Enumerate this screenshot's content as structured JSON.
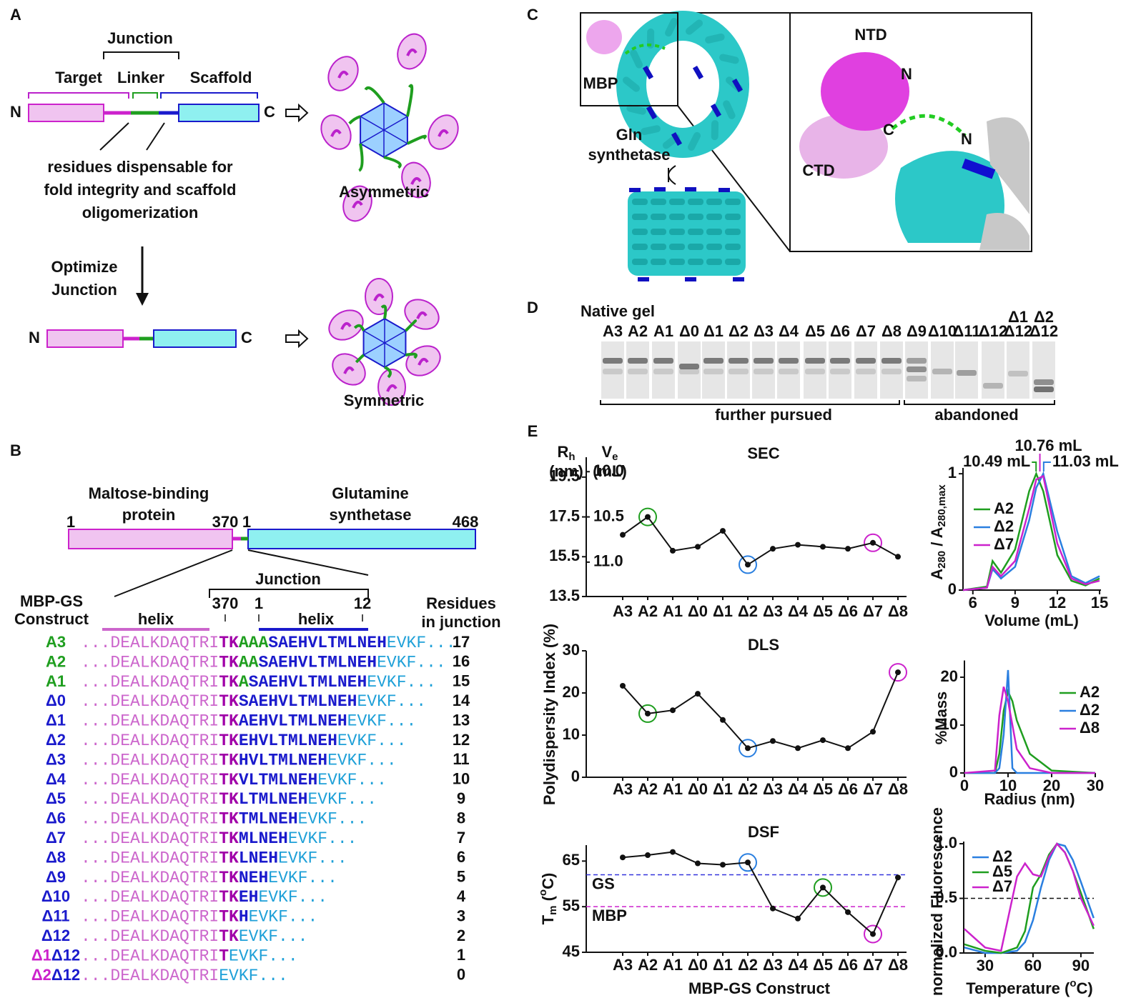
{
  "panel_labels": [
    "A",
    "B",
    "C",
    "D",
    "E"
  ],
  "panel_a": {
    "junction": "Junction",
    "target": "Target",
    "linker": "Linker",
    "scaffold": "Scaffold",
    "termini": [
      "N",
      "C",
      "N",
      "C"
    ],
    "note": [
      "residues dispensable for",
      "fold integrity and scaffold",
      "oligomerization"
    ],
    "step": [
      "Optimize",
      "Junction"
    ],
    "assemblies": [
      "Asymmetric",
      "Symmetric"
    ]
  },
  "panel_b": {
    "mbp": [
      "Maltose-binding",
      "protein"
    ],
    "gs": [
      "Glutamine",
      "synthetase"
    ],
    "positions": [
      "1",
      "370",
      "1",
      "468"
    ],
    "junction": "Junction",
    "construct_header": [
      "MBP-GS",
      "Construct"
    ],
    "helix": [
      "helix",
      "helix"
    ],
    "junction_positions": [
      "370",
      "1",
      "12"
    ],
    "residues_header": [
      "Residues",
      "in junction"
    ],
    "segment_colors": {
      "target": "#cc66cc",
      "tk": "#a000a8",
      "linker": "#1f9e1f",
      "helix": "#1a1acc",
      "tail": "#1ea0d8"
    },
    "rows": [
      {
        "name": [
          {
            "text": "A3",
            "color": "#1f9e1f"
          }
        ],
        "sequence": {
          "target": "...DEALKDAQTRI",
          "tk": "TK",
          "linker": "AAA",
          "helix": "SAEHVLTMLNEH",
          "tail": "EVKF..."
        },
        "residues": 17
      },
      {
        "name": [
          {
            "text": "A2",
            "color": "#1f9e1f"
          }
        ],
        "sequence": {
          "target": "...DEALKDAQTRI",
          "tk": "TK",
          "linker": "AA",
          "helix": "SAEHVLTMLNEH",
          "tail": "EVKF..."
        },
        "residues": 16
      },
      {
        "name": [
          {
            "text": "A1",
            "color": "#1f9e1f"
          }
        ],
        "sequence": {
          "target": "...DEALKDAQTRI",
          "tk": "TK",
          "linker": "A",
          "helix": "SAEHVLTMLNEH",
          "tail": "EVKF..."
        },
        "residues": 15
      },
      {
        "name": [
          {
            "text": "Δ0",
            "color": "#1a1acc"
          }
        ],
        "sequence": {
          "target": "...DEALKDAQTRI",
          "tk": "TK",
          "helix": "SAEHVLTMLNEH",
          "tail": "EVKF..."
        },
        "residues": 14
      },
      {
        "name": [
          {
            "text": "Δ1",
            "color": "#1a1acc"
          }
        ],
        "sequence": {
          "target": "...DEALKDAQTRI",
          "tk": "TK",
          "helix": "AEHVLTMLNEH",
          "tail": "EVKF..."
        },
        "residues": 13
      },
      {
        "name": [
          {
            "text": "Δ2",
            "color": "#1a1acc"
          }
        ],
        "sequence": {
          "target": "...DEALKDAQTRI",
          "tk": "TK",
          "helix": "EHVLTMLNEH",
          "tail": "EVKF..."
        },
        "residues": 12
      },
      {
        "name": [
          {
            "text": "Δ3",
            "color": "#1a1acc"
          }
        ],
        "sequence": {
          "target": "...DEALKDAQTRI",
          "tk": "TK",
          "helix": "HVLTMLNEH",
          "tail": "EVKF..."
        },
        "residues": 11
      },
      {
        "name": [
          {
            "text": "Δ4",
            "color": "#1a1acc"
          }
        ],
        "sequence": {
          "target": "...DEALKDAQTRI",
          "tk": "TK",
          "helix": "VLTMLNEH",
          "tail": "EVKF..."
        },
        "residues": 10
      },
      {
        "name": [
          {
            "text": "Δ5",
            "color": "#1a1acc"
          }
        ],
        "sequence": {
          "target": "...DEALKDAQTRI",
          "tk": "TK",
          "helix": "LTMLNEH",
          "tail": "EVKF..."
        },
        "residues": 9
      },
      {
        "name": [
          {
            "text": "Δ6",
            "color": "#1a1acc"
          }
        ],
        "sequence": {
          "target": "...DEALKDAQTRI",
          "tk": "TK",
          "helix": "TMLNEH",
          "tail": "EVKF..."
        },
        "residues": 8
      },
      {
        "name": [
          {
            "text": "Δ7",
            "color": "#1a1acc"
          }
        ],
        "sequence": {
          "target": "...DEALKDAQTRI",
          "tk": "TK",
          "helix": "MLNEH",
          "tail": "EVKF..."
        },
        "residues": 7
      },
      {
        "name": [
          {
            "text": "Δ8",
            "color": "#1a1acc"
          }
        ],
        "sequence": {
          "target": "...DEALKDAQTRI",
          "tk": "TK",
          "helix": "LNEH",
          "tail": "EVKF..."
        },
        "residues": 6
      },
      {
        "name": [
          {
            "text": "Δ9",
            "color": "#1a1acc"
          }
        ],
        "sequence": {
          "target": "...DEALKDAQTRI",
          "tk": "TK",
          "helix": "NEH",
          "tail": "EVKF..."
        },
        "residues": 5
      },
      {
        "name": [
          {
            "text": "Δ10",
            "color": "#1a1acc"
          }
        ],
        "sequence": {
          "target": "...DEALKDAQTRI",
          "tk": "TK",
          "helix": "EH",
          "tail": "EVKF..."
        },
        "residues": 4
      },
      {
        "name": [
          {
            "text": "Δ11",
            "color": "#1a1acc"
          }
        ],
        "sequence": {
          "target": "...DEALKDAQTRI",
          "tk": "TK",
          "helix": "H",
          "tail": "EVKF..."
        },
        "residues": 3
      },
      {
        "name": [
          {
            "text": "Δ12",
            "color": "#1a1acc"
          }
        ],
        "sequence": {
          "target": "...DEALKDAQTRI",
          "tk": "TK",
          "tail": "EVKF..."
        },
        "residues": 2
      },
      {
        "name": [
          {
            "text": "Δ1",
            "color": "#cc22cc"
          },
          {
            "text": "Δ12",
            "color": "#1a1acc"
          }
        ],
        "sequence": {
          "target": "...DEALKDAQTRI",
          "tk": "T",
          "tail": "EVKF..."
        },
        "residues": 1
      },
      {
        "name": [
          {
            "text": "Δ2",
            "color": "#cc22cc"
          },
          {
            "text": "Δ12",
            "color": "#1a1acc"
          }
        ],
        "sequence": {
          "target": "...DEALKDAQTRI",
          "tail": "EVKF..."
        },
        "residues": 0
      }
    ]
  },
  "panel_c": {
    "labels": [
      "MBP",
      "Gln",
      "synthetase",
      "NTD",
      "N",
      "C",
      "CTD",
      "N"
    ]
  },
  "panel_d": {
    "title": "Native gel",
    "lane_labels": [
      [
        "A3"
      ],
      [
        "A2"
      ],
      [
        "A1"
      ],
      [
        "Δ0"
      ],
      [
        "Δ1"
      ],
      [
        "Δ2"
      ],
      [
        "Δ3"
      ],
      [
        "Δ4"
      ],
      [
        "Δ5"
      ],
      [
        "Δ6"
      ],
      [
        "Δ7"
      ],
      [
        "Δ8"
      ],
      [
        "Δ9"
      ],
      [
        "Δ10"
      ],
      [
        "Δ11"
      ],
      [
        "Δ12"
      ],
      [
        "Δ1",
        "Δ12"
      ],
      [
        "Δ2",
        "Δ12"
      ]
    ],
    "lane_label_colors": [
      [
        "#1f9e1f"
      ],
      [
        "#1f9e1f"
      ],
      [
        "#1f9e1f"
      ],
      [
        "#1a1acc"
      ],
      [
        "#1a1acc"
      ],
      [
        "#1a1acc"
      ],
      [
        "#1a1acc"
      ],
      [
        "#1a1acc"
      ],
      [
        "#1a1acc"
      ],
      [
        "#1a1acc"
      ],
      [
        "#1a1acc"
      ],
      [
        "#1a1acc"
      ],
      [
        "#1a1acc"
      ],
      [
        "#1a1acc"
      ],
      [
        "#1a1acc"
      ],
      [
        "#1a1acc"
      ],
      [
        "#cc22cc",
        "#1a1acc"
      ],
      [
        "#cc22cc",
        "#1a1acc"
      ]
    ],
    "groups": [
      "further pursued",
      "abandoned"
    ]
  },
  "chart_data": [
    {
      "type": "line",
      "title": "SEC",
      "categories": [
        "A3",
        "A2",
        "A1",
        "Δ0",
        "Δ1",
        "Δ2",
        "Δ3",
        "Δ4",
        "Δ5",
        "Δ6",
        "Δ7",
        "Δ8"
      ],
      "category_colors": [
        "#1f9e1f",
        "#1f9e1f",
        "#1f9e1f",
        "#1a1acc",
        "#1a1acc",
        "#1a1acc",
        "#1a1acc",
        "#1a1acc",
        "#1a1acc",
        "#1a1acc",
        "#1a1acc",
        "#1a1acc"
      ],
      "y_label": {
        "symbol": "R",
        "subscript": "h"
      },
      "y_unit": "(nm)",
      "ylim": [
        13.5,
        20.5
      ],
      "yticks": [
        13.5,
        15.5,
        17.5,
        19.5
      ],
      "y2_label": {
        "symbol": "V",
        "subscript": "e"
      },
      "y2_unit": "(mL)",
      "y2lim": [
        11.38,
        9.84
      ],
      "y2ticks": [
        {
          "value": 10,
          "label": "10.0"
        },
        10.5,
        {
          "value": 11,
          "label": "11.0"
        }
      ],
      "series": [
        {
          "color": "#111111",
          "values": [
            16.6,
            17.5,
            15.8,
            16.0,
            16.8,
            15.1,
            15.9,
            16.1,
            16.0,
            15.9,
            16.2,
            15.5
          ]
        }
      ],
      "highlights": [
        {
          "index": 1,
          "color": "#1f9e1f"
        },
        {
          "index": 5,
          "color": "#2a7fe0"
        },
        {
          "index": 10,
          "color": "#cc22cc"
        }
      ]
    },
    {
      "type": "line",
      "x": [
        5.3,
        7,
        7.4,
        8,
        9,
        10,
        10.5,
        11,
        12,
        13,
        14,
        15
      ],
      "xlim": [
        5.3,
        15.1
      ],
      "xticks": [
        6,
        9,
        12,
        15
      ],
      "ylim": [
        0,
        1.05
      ],
      "yticks": [
        0,
        1
      ],
      "x_label": "Volume (mL)",
      "y_label": {
        "symbol": "A",
        "subscript": "280",
        "middle": " / A",
        "subscript2": "280,max"
      },
      "series": [
        {
          "name": "A2",
          "color": "#1f9e1f",
          "values": [
            0,
            0.03,
            0.25,
            0.15,
            0.35,
            0.85,
            1,
            0.85,
            0.3,
            0.08,
            0.04,
            0.1
          ]
        },
        {
          "name": "Δ2",
          "color": "#2a7fe0",
          "values": [
            0,
            0.02,
            0.18,
            0.1,
            0.2,
            0.6,
            0.88,
            1,
            0.5,
            0.12,
            0.06,
            0.12
          ]
        },
        {
          "name": "Δ7",
          "color": "#cc22cc",
          "values": [
            0,
            0.02,
            0.2,
            0.12,
            0.25,
            0.7,
            0.95,
            0.98,
            0.4,
            0.1,
            0.05,
            0.08
          ]
        }
      ],
      "annotations": [
        {
          "label": "10.49 mL",
          "value": 10.49,
          "color": "#1f9e1f"
        },
        {
          "label": "10.76 mL",
          "value": 10.76,
          "color": "#cc22cc"
        },
        {
          "label": "11.03 mL",
          "value": 11.03,
          "color": "#2a7fe0"
        }
      ]
    },
    {
      "type": "line",
      "title": "DLS",
      "categories": [
        "A3",
        "A2",
        "A1",
        "Δ0",
        "Δ1",
        "Δ2",
        "Δ3",
        "Δ4",
        "Δ5",
        "Δ6",
        "Δ7",
        "Δ8"
      ],
      "category_colors": [
        "#1f9e1f",
        "#1f9e1f",
        "#1f9e1f",
        "#1a1acc",
        "#1a1acc",
        "#1a1acc",
        "#1a1acc",
        "#1a1acc",
        "#1a1acc",
        "#1a1acc",
        "#1a1acc",
        "#1a1acc"
      ],
      "y_label": {
        "text": "Polydispersity Index (%)"
      },
      "ylim": [
        0,
        30
      ],
      "yticks": [
        0,
        10,
        20,
        30
      ],
      "series": [
        {
          "color": "#111111",
          "values": [
            21.7,
            15.1,
            15.9,
            19.8,
            13.6,
            6.9,
            8.6,
            6.9,
            8.8,
            6.9,
            10.8,
            24.9
          ]
        }
      ],
      "highlights": [
        {
          "index": 1,
          "color": "#1f9e1f"
        },
        {
          "index": 5,
          "color": "#2a7fe0"
        },
        {
          "index": 11,
          "color": "#cc22cc"
        }
      ]
    },
    {
      "type": "line",
      "x": [
        0,
        7,
        8,
        9,
        10,
        11,
        12,
        15,
        20,
        30
      ],
      "xlim": [
        0,
        30
      ],
      "xticks": [
        0,
        10,
        20,
        30
      ],
      "ylim": [
        0,
        23.5
      ],
      "yticks": [
        0,
        10,
        20
      ],
      "x_label": "Radius (nm)",
      "y_label": {
        "text": "%Mass"
      },
      "series": [
        {
          "name": "A2",
          "color": "#1f9e1f",
          "values": [
            0,
            0,
            4,
            13,
            17,
            15,
            11,
            4,
            0.5,
            0
          ]
        },
        {
          "name": "Δ2",
          "color": "#2a7fe0",
          "values": [
            0,
            0,
            1,
            8,
            21.5,
            1,
            0,
            0,
            0,
            0
          ]
        },
        {
          "name": "Δ8",
          "color": "#cc22cc",
          "values": [
            0,
            0.5,
            12,
            18,
            15,
            10,
            5,
            1,
            0,
            0
          ]
        }
      ]
    },
    {
      "type": "line",
      "title": "DSF",
      "categories": [
        "A3",
        "A2",
        "A1",
        "Δ0",
        "Δ1",
        "Δ2",
        "Δ3",
        "Δ4",
        "Δ5",
        "Δ6",
        "Δ7",
        "Δ8"
      ],
      "category_colors": [
        "#1f9e1f",
        "#1f9e1f",
        "#1f9e1f",
        "#1a1acc",
        "#1a1acc",
        "#1a1acc",
        "#1a1acc",
        "#1a1acc",
        "#1a1acc",
        "#1a1acc",
        "#1a1acc",
        "#1a1acc"
      ],
      "y_label": {
        "symbol": "T",
        "subscript": "m",
        "open": " (",
        "superscript": "o",
        "close": "C)"
      },
      "ylim": [
        45,
        68.5
      ],
      "yticks": [
        45,
        55,
        65
      ],
      "x_label": "MBP-GS Construct",
      "series": [
        {
          "color": "#111111",
          "values": [
            65.8,
            66.3,
            67.0,
            64.5,
            64.2,
            64.7,
            54.6,
            52.4,
            59.2,
            53.8,
            49.0,
            61.4
          ]
        }
      ],
      "highlights": [
        {
          "index": 5,
          "color": "#2a7fe0"
        },
        {
          "index": 8,
          "color": "#1f9e1f"
        },
        {
          "index": 10,
          "color": "#cc22cc"
        }
      ],
      "hlines": [
        {
          "label": "GS",
          "value": 62,
          "color": "#3333dd"
        },
        {
          "label": "MBP",
          "value": 55,
          "color": "#cc22cc"
        }
      ]
    },
    {
      "type": "line",
      "x": [
        17,
        30,
        40,
        50,
        55,
        60,
        65,
        70,
        75,
        80,
        85,
        90,
        98
      ],
      "xlim": [
        16.6,
        98.1
      ],
      "xticks": [
        30,
        60,
        90
      ],
      "ylim": [
        0,
        1.02
      ],
      "yticks": [
        {
          "value": 0,
          "label": "0.0"
        },
        0.5,
        {
          "value": 1,
          "label": "1.0"
        }
      ],
      "x_label": {
        "text": "Temperature (",
        "superscript": "o",
        "close": "C)"
      },
      "y_label": {
        "text": "normalized Fluorescence"
      },
      "series": [
        {
          "name": "Δ2",
          "color": "#2a7fe0",
          "values": [
            0.05,
            0,
            0,
            0.02,
            0.1,
            0.3,
            0.6,
            0.85,
            1,
            0.98,
            0.85,
            0.65,
            0.32
          ]
        },
        {
          "name": "Δ5",
          "color": "#1f9e1f",
          "values": [
            0.08,
            0.02,
            0,
            0.05,
            0.2,
            0.6,
            0.72,
            0.9,
            1,
            0.92,
            0.75,
            0.55,
            0.22
          ]
        },
        {
          "name": "Δ7",
          "color": "#cc22cc",
          "values": [
            0.22,
            0.05,
            0.02,
            0.7,
            0.82,
            0.72,
            0.7,
            0.88,
            1,
            0.92,
            0.75,
            0.5,
            0.25
          ]
        }
      ],
      "hlines": [
        {
          "value": 0.5,
          "color": "#111111"
        }
      ]
    }
  ]
}
